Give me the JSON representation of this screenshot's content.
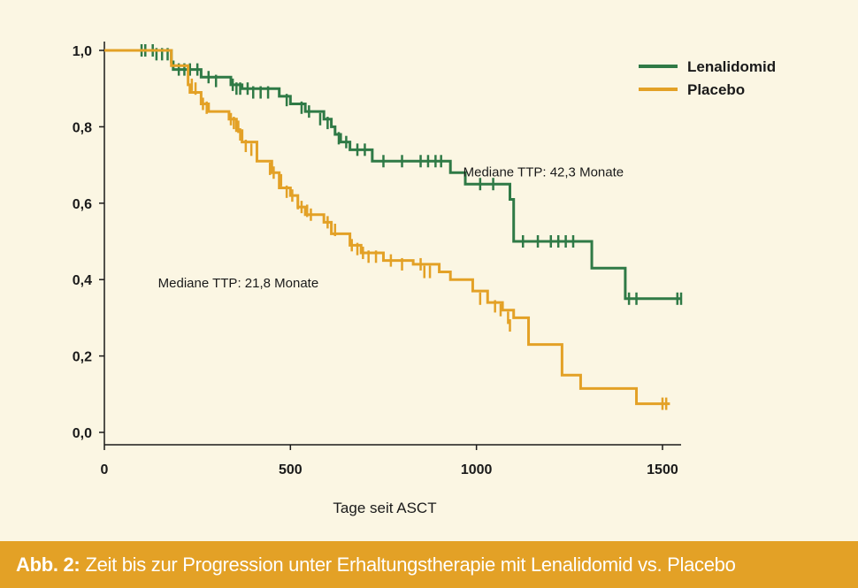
{
  "caption": {
    "label": "Abb. 2:",
    "text": "Zeit bis zur Progression unter Erhaltungstherapie mit Lenalidomid vs. Placebo"
  },
  "colors": {
    "background": "#fbf6e3",
    "caption_background": "#e3a126",
    "lenalidomid": "#2f7a46",
    "placebo": "#e3a126",
    "axis": "#1a1a1a"
  },
  "chart_data": {
    "type": "line",
    "step": true,
    "xlabel": "Tage seit ASCT",
    "ylabel": "",
    "xlim": [
      0,
      1550
    ],
    "ylim": [
      0,
      1.0
    ],
    "x_ticks": [
      0,
      500,
      1000,
      1500
    ],
    "x_tick_labels": [
      "0",
      "500",
      "1000",
      "1500"
    ],
    "y_ticks": [
      0,
      0.2,
      0.4,
      0.6,
      0.8,
      1.0
    ],
    "y_tick_labels": [
      "0,0",
      "0,2",
      "0,4",
      "0,6",
      "0,8",
      "1,0"
    ],
    "grid": false,
    "legend_position": "top-right",
    "series": [
      {
        "name": "Lenalidomid",
        "color": "#2f7a46",
        "steps": [
          [
            0,
            1.0
          ],
          [
            180,
            0.97
          ],
          [
            185,
            0.95
          ],
          [
            260,
            0.93
          ],
          [
            340,
            0.91
          ],
          [
            370,
            0.9
          ],
          [
            470,
            0.88
          ],
          [
            500,
            0.86
          ],
          [
            540,
            0.84
          ],
          [
            590,
            0.82
          ],
          [
            610,
            0.8
          ],
          [
            620,
            0.78
          ],
          [
            635,
            0.76
          ],
          [
            660,
            0.74
          ],
          [
            720,
            0.71
          ],
          [
            930,
            0.68
          ],
          [
            970,
            0.65
          ],
          [
            1090,
            0.61
          ],
          [
            1100,
            0.5
          ],
          [
            1310,
            0.43
          ],
          [
            1400,
            0.35
          ],
          [
            1550,
            0.35
          ]
        ],
        "censored": [
          [
            100,
            1.0
          ],
          [
            110,
            1.0
          ],
          [
            130,
            1.0
          ],
          [
            140,
            0.99
          ],
          [
            155,
            0.99
          ],
          [
            170,
            0.99
          ],
          [
            200,
            0.95
          ],
          [
            215,
            0.95
          ],
          [
            230,
            0.95
          ],
          [
            250,
            0.95
          ],
          [
            280,
            0.93
          ],
          [
            300,
            0.92
          ],
          [
            345,
            0.91
          ],
          [
            355,
            0.9
          ],
          [
            365,
            0.9
          ],
          [
            385,
            0.9
          ],
          [
            400,
            0.89
          ],
          [
            420,
            0.89
          ],
          [
            440,
            0.89
          ],
          [
            490,
            0.87
          ],
          [
            530,
            0.85
          ],
          [
            550,
            0.84
          ],
          [
            580,
            0.82
          ],
          [
            600,
            0.81
          ],
          [
            630,
            0.77
          ],
          [
            650,
            0.76
          ],
          [
            680,
            0.74
          ],
          [
            700,
            0.74
          ],
          [
            750,
            0.71
          ],
          [
            800,
            0.71
          ],
          [
            850,
            0.71
          ],
          [
            870,
            0.71
          ],
          [
            890,
            0.71
          ],
          [
            905,
            0.71
          ],
          [
            1010,
            0.65
          ],
          [
            1045,
            0.65
          ],
          [
            1125,
            0.5
          ],
          [
            1165,
            0.5
          ],
          [
            1200,
            0.5
          ],
          [
            1220,
            0.5
          ],
          [
            1240,
            0.5
          ],
          [
            1260,
            0.5
          ],
          [
            1410,
            0.35
          ],
          [
            1430,
            0.35
          ],
          [
            1540,
            0.35
          ],
          [
            1550,
            0.35
          ]
        ]
      },
      {
        "name": "Placebo",
        "color": "#e3a126",
        "steps": [
          [
            0,
            1.0
          ],
          [
            180,
            0.96
          ],
          [
            225,
            0.91
          ],
          [
            230,
            0.89
          ],
          [
            260,
            0.86
          ],
          [
            280,
            0.84
          ],
          [
            335,
            0.82
          ],
          [
            355,
            0.79
          ],
          [
            370,
            0.76
          ],
          [
            410,
            0.71
          ],
          [
            450,
            0.68
          ],
          [
            470,
            0.64
          ],
          [
            500,
            0.62
          ],
          [
            520,
            0.59
          ],
          [
            540,
            0.57
          ],
          [
            590,
            0.55
          ],
          [
            610,
            0.52
          ],
          [
            660,
            0.49
          ],
          [
            690,
            0.47
          ],
          [
            750,
            0.45
          ],
          [
            830,
            0.44
          ],
          [
            900,
            0.42
          ],
          [
            930,
            0.4
          ],
          [
            990,
            0.37
          ],
          [
            1030,
            0.34
          ],
          [
            1070,
            0.32
          ],
          [
            1100,
            0.3
          ],
          [
            1140,
            0.23
          ],
          [
            1230,
            0.15
          ],
          [
            1280,
            0.115
          ],
          [
            1430,
            0.075
          ],
          [
            1520,
            0.075
          ]
        ],
        "censored": [
          [
            235,
            0.91
          ],
          [
            245,
            0.9
          ],
          [
            265,
            0.86
          ],
          [
            275,
            0.85
          ],
          [
            340,
            0.82
          ],
          [
            348,
            0.81
          ],
          [
            360,
            0.8
          ],
          [
            365,
            0.78
          ],
          [
            380,
            0.75
          ],
          [
            395,
            0.74
          ],
          [
            445,
            0.69
          ],
          [
            455,
            0.68
          ],
          [
            475,
            0.66
          ],
          [
            490,
            0.63
          ],
          [
            505,
            0.62
          ],
          [
            520,
            0.6
          ],
          [
            530,
            0.59
          ],
          [
            545,
            0.58
          ],
          [
            555,
            0.57
          ],
          [
            600,
            0.55
          ],
          [
            620,
            0.53
          ],
          [
            665,
            0.49
          ],
          [
            680,
            0.48
          ],
          [
            695,
            0.47
          ],
          [
            710,
            0.46
          ],
          [
            730,
            0.46
          ],
          [
            770,
            0.45
          ],
          [
            800,
            0.44
          ],
          [
            850,
            0.44
          ],
          [
            860,
            0.42
          ],
          [
            875,
            0.42
          ],
          [
            1010,
            0.35
          ],
          [
            1050,
            0.33
          ],
          [
            1065,
            0.32
          ],
          [
            1085,
            0.3
          ],
          [
            1090,
            0.28
          ],
          [
            1500,
            0.075
          ],
          [
            1510,
            0.075
          ]
        ]
      }
    ],
    "annotations": [
      {
        "text": "Mediane TTP: 42,3 Monate",
        "x": 1180,
        "y": 0.67
      },
      {
        "text": "Mediane TTP: 21,8 Monate",
        "x": 360,
        "y": 0.38
      }
    ]
  }
}
